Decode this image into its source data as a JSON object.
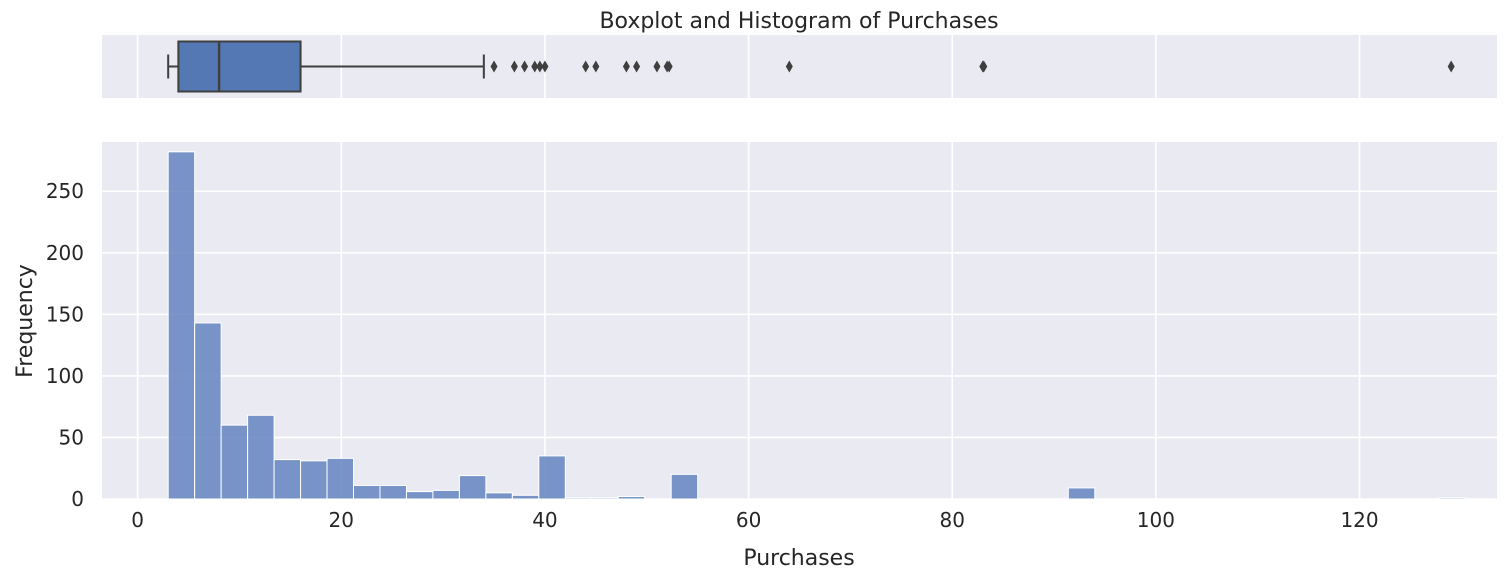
{
  "chart_data": [
    {
      "type": "box",
      "title": "Boxplot and Histogram of Purchases",
      "xlim": [
        -3.5,
        133.5
      ],
      "whisker_low": 3,
      "q1": 4,
      "median": 8,
      "q3": 16,
      "whisker_high": 34,
      "outliers": [
        35,
        37,
        38,
        39,
        39.5,
        40,
        44,
        45,
        48,
        49,
        51,
        52,
        52.2,
        64,
        83,
        83.1,
        129
      ],
      "colors": {
        "box": "#4c72b0",
        "line": "#3f3f3f"
      }
    },
    {
      "type": "bar",
      "subtype": "histogram",
      "xlabel": "Purchases",
      "ylabel": "Frequency",
      "xlim": [
        -3.5,
        133.5
      ],
      "ylim": [
        0,
        290
      ],
      "xticks": [
        0,
        20,
        40,
        60,
        80,
        100,
        120
      ],
      "yticks": [
        0,
        50,
        100,
        150,
        200,
        250
      ],
      "bin_start": 3,
      "bin_width": 2.6,
      "counts": [
        282,
        143,
        60,
        68,
        32,
        31,
        33,
        11,
        11,
        6,
        7,
        19,
        5,
        3,
        35,
        1,
        1,
        2,
        0,
        20,
        0,
        0,
        0,
        0,
        0,
        0,
        0,
        0,
        0,
        0,
        0,
        0,
        0,
        0,
        9,
        0,
        0,
        0,
        0,
        0,
        0,
        0,
        0,
        0,
        0,
        0,
        0,
        0,
        1
      ],
      "colors": {
        "bar": "#5a7dbc"
      }
    }
  ]
}
